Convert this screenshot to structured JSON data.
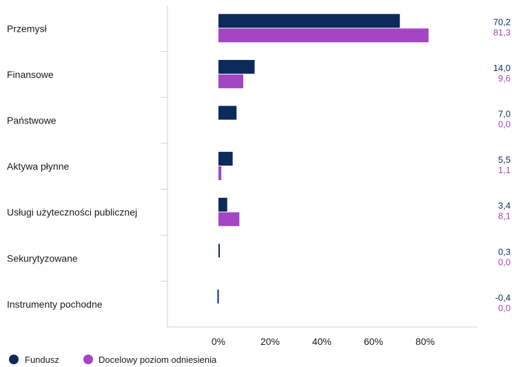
{
  "chart_data": {
    "type": "bar",
    "orientation": "horizontal",
    "categories": [
      "Przemysł",
      "Finansowe",
      "Państwowe",
      "Aktywa płynne",
      "Usługi użyteczności publicznej",
      "Sekurytyzowane",
      "Instrumenty pochodne"
    ],
    "series": [
      {
        "name": "Fundusz",
        "values": [
          70.2,
          14.0,
          7.0,
          5.5,
          3.4,
          0.3,
          -0.4
        ],
        "labels": [
          "70,2",
          "14,0",
          "7,0",
          "5,5",
          "3,4",
          "0,3",
          "-0,4"
        ],
        "color": "#0d2a5c"
      },
      {
        "name": "Docelowy poziom odniesienia",
        "values": [
          81.3,
          9.6,
          0.0,
          1.1,
          8.1,
          0.0,
          0.0
        ],
        "labels": [
          "81,3",
          "9,6",
          "0,0",
          "1,1",
          "8,1",
          "0,0",
          "0,0"
        ],
        "color": "#a445c2"
      }
    ],
    "x_ticks": [
      0,
      20,
      40,
      60,
      80
    ],
    "x_tick_labels": [
      "0%",
      "20%",
      "40%",
      "60%",
      "80%"
    ],
    "xlim": [
      -20,
      100
    ],
    "legend_position": "bottom-left",
    "grid": false
  }
}
